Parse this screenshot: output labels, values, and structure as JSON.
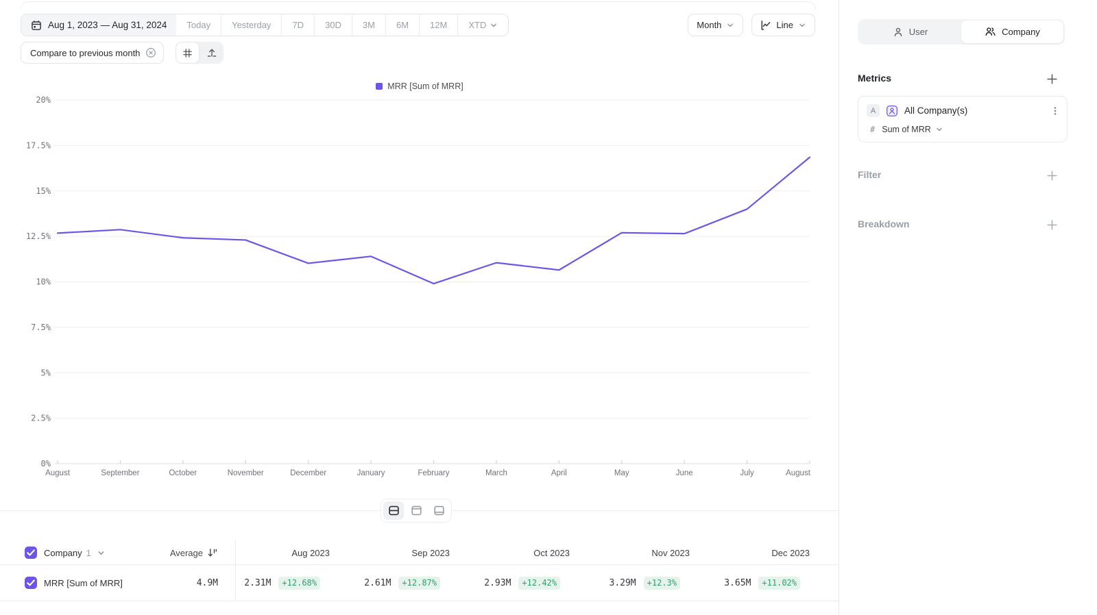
{
  "toolbar": {
    "date_range": "Aug 1, 2023 — Aug 31, 2024",
    "presets": [
      "Today",
      "Yesterday",
      "7D",
      "30D",
      "3M",
      "6M",
      "12M"
    ],
    "xtd_label": "XTD",
    "compare_chip": "Compare to previous month",
    "granularity": "Month",
    "chart_type": "Line"
  },
  "entity_toggle": {
    "user_label": "User",
    "company_label": "Company",
    "selected": "Company"
  },
  "sidebar": {
    "metrics_title": "Metrics",
    "metric": {
      "letter": "A",
      "name": "All Company(s)",
      "aggregation": "Sum of MRR"
    },
    "filter_label": "Filter",
    "breakdown_label": "Breakdown"
  },
  "chart_data": {
    "type": "line",
    "legend": [
      "MRR [Sum of MRR]"
    ],
    "x": [
      "August",
      "September",
      "October",
      "November",
      "December",
      "January",
      "February",
      "March",
      "April",
      "May",
      "June",
      "July",
      "August"
    ],
    "values": [
      12.68,
      12.87,
      12.42,
      12.3,
      11.02,
      11.4,
      9.9,
      11.05,
      10.65,
      12.7,
      12.65,
      14.0,
      16.85
    ],
    "yticks": [
      "20%",
      "17.5%",
      "15%",
      "12.5%",
      "10%",
      "7.5%",
      "5%",
      "2.5%",
      "0%"
    ],
    "ylim": [
      0,
      20
    ],
    "grid": true,
    "legend_position": "top-center",
    "unit": "percent"
  },
  "table": {
    "header": {
      "entity": "Company",
      "count": "1",
      "average_label": "Average"
    },
    "columns": [
      "Aug 2023",
      "Sep 2023",
      "Oct 2023",
      "Nov 2023",
      "Dec 2023"
    ],
    "rows": [
      {
        "name": "MRR [Sum of MRR]",
        "average": "4.9M",
        "cells": [
          {
            "value": "2.31M",
            "delta": "+12.68%"
          },
          {
            "value": "2.61M",
            "delta": "+12.87%"
          },
          {
            "value": "2.93M",
            "delta": "+12.42%"
          },
          {
            "value": "3.29M",
            "delta": "+12.3%"
          },
          {
            "value": "3.65M",
            "delta": "+11.02%"
          }
        ]
      }
    ]
  },
  "colors": {
    "accent": "#6c55e7",
    "accent_icon": "#7b63f1",
    "positive_text": "#2f9e6e",
    "positive_bg": "#e6f3ec"
  }
}
